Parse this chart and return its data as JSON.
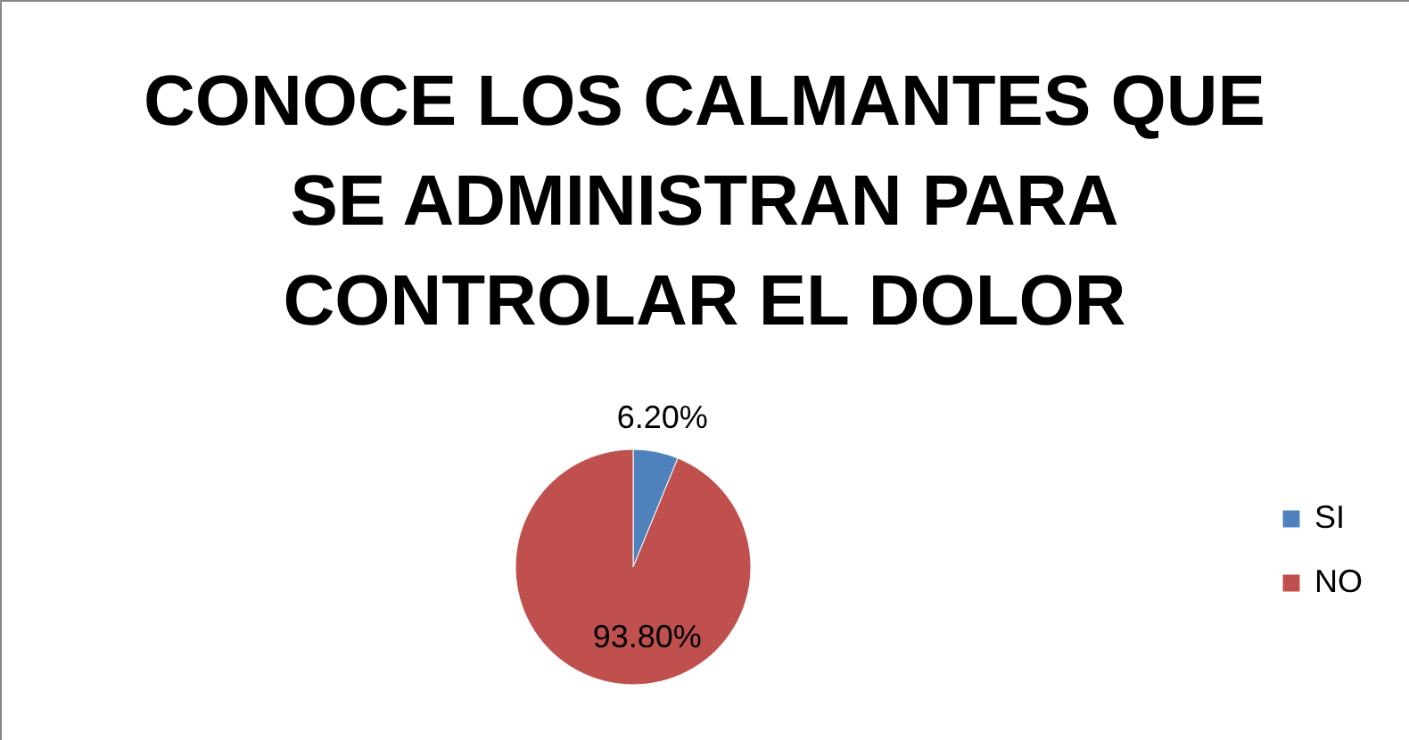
{
  "chart_data": {
    "type": "pie",
    "title": "CONOCE LOS CALMANTES QUE SE ADMINISTRAN PARA CONTROLAR EL DOLOR",
    "categories": [
      "SI",
      "NO"
    ],
    "values": [
      6.2,
      93.8
    ],
    "colors": [
      "#4f81bd",
      "#c0504d"
    ],
    "value_labels": [
      "6.20%",
      "93.80%"
    ],
    "legend": "right"
  }
}
